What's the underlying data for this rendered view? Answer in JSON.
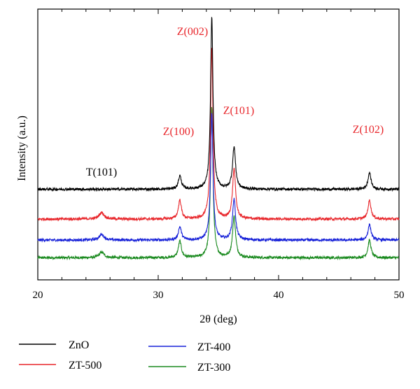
{
  "chart_data": {
    "type": "line",
    "title": "",
    "xlabel": "2θ (deg)",
    "ylabel": "Intensity (a.u.)",
    "xlim": [
      20,
      50
    ],
    "x_ticks": [
      "20",
      "30",
      "40",
      "50"
    ],
    "y_ticks_shown": false,
    "grid": false,
    "legend_position": "bottom",
    "series": [
      {
        "name": "ZnO",
        "color": "#000000",
        "baseline": 0.82,
        "noise": 0.012,
        "peaks": [
          {
            "x": 31.8,
            "height": 0.12,
            "width": 0.15
          },
          {
            "x": 34.45,
            "height": 1.55,
            "width": 0.12
          },
          {
            "x": 36.3,
            "height": 0.38,
            "width": 0.15
          },
          {
            "x": 47.55,
            "height": 0.15,
            "width": 0.15
          }
        ]
      },
      {
        "name": "ZT-500",
        "color": "#e8262b",
        "baseline": 0.55,
        "noise": 0.012,
        "peaks": [
          {
            "x": 25.3,
            "height": 0.06,
            "width": 0.25
          },
          {
            "x": 31.8,
            "height": 0.17,
            "width": 0.15
          },
          {
            "x": 34.45,
            "height": 1.56,
            "width": 0.12
          },
          {
            "x": 36.3,
            "height": 0.45,
            "width": 0.15
          },
          {
            "x": 47.55,
            "height": 0.17,
            "width": 0.15
          }
        ]
      },
      {
        "name": "ZT-400",
        "color": "#1620d8",
        "baseline": 0.36,
        "noise": 0.012,
        "peaks": [
          {
            "x": 25.3,
            "height": 0.05,
            "width": 0.25
          },
          {
            "x": 31.8,
            "height": 0.12,
            "width": 0.15
          },
          {
            "x": 34.45,
            "height": 1.15,
            "width": 0.12
          },
          {
            "x": 36.3,
            "height": 0.37,
            "width": 0.15
          },
          {
            "x": 47.55,
            "height": 0.14,
            "width": 0.15
          }
        ]
      },
      {
        "name": "ZT-300",
        "color": "#1a8a1f",
        "baseline": 0.2,
        "noise": 0.012,
        "peaks": [
          {
            "x": 25.3,
            "height": 0.05,
            "width": 0.25
          },
          {
            "x": 31.8,
            "height": 0.15,
            "width": 0.15
          },
          {
            "x": 34.45,
            "height": 1.36,
            "width": 0.12
          },
          {
            "x": 36.3,
            "height": 0.37,
            "width": 0.15
          },
          {
            "x": 47.55,
            "height": 0.16,
            "width": 0.15
          }
        ]
      }
    ],
    "annotations": [
      {
        "text": "Z(002)",
        "color": "#e8262b"
      },
      {
        "text": "Z(101)",
        "color": "#e8262b"
      },
      {
        "text": "Z(100)",
        "color": "#e8262b"
      },
      {
        "text": "Z(102)",
        "color": "#e8262b"
      },
      {
        "text": "T(101)",
        "color": "#000000"
      }
    ]
  }
}
